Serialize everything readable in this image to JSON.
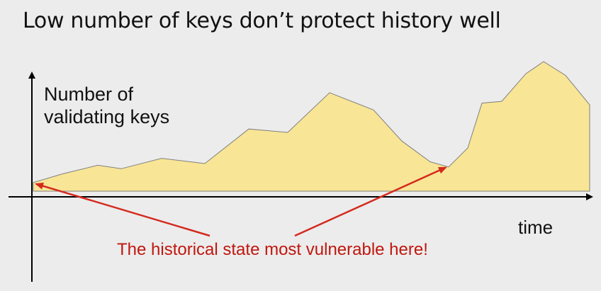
{
  "slide": {
    "title": "Low number of keys don’t protect history well"
  },
  "chart_data": {
    "type": "area",
    "ylabel_lines": [
      "Number of",
      "validating keys"
    ],
    "xlabel": "time",
    "annotation": "The historical state most vulnerable here!",
    "fill_color": "#f8e596",
    "line_color": "#808080",
    "arrow_color": "#d42a1e",
    "series": [
      {
        "values": [
          0.05,
          0.1,
          0.15,
          0.13,
          0.19,
          0.16,
          0.36,
          0.34,
          0.57,
          0.47,
          0.29,
          0.17,
          0.14,
          0.25,
          0.51,
          0.52,
          0.68,
          0.75,
          0.67,
          0.5
        ]
      }
    ],
    "callout_targets": [
      0,
      11
    ]
  }
}
